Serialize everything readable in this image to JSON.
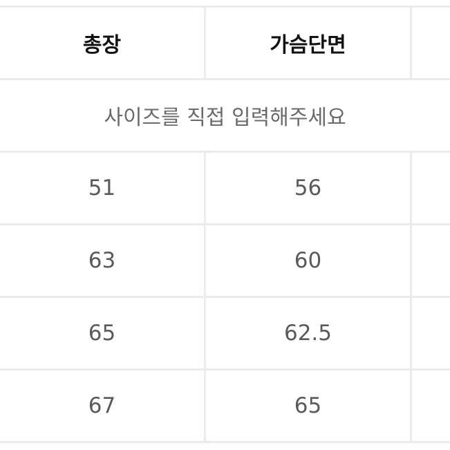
{
  "headers": [
    "총장",
    "가슴단면",
    ""
  ],
  "notice": "사이즈를 직접 입력해주세요",
  "rows": [
    [
      "51",
      "56",
      ""
    ],
    [
      "63",
      "60",
      ""
    ],
    [
      "65",
      "62.5",
      ""
    ],
    [
      "67",
      "65",
      ""
    ]
  ]
}
